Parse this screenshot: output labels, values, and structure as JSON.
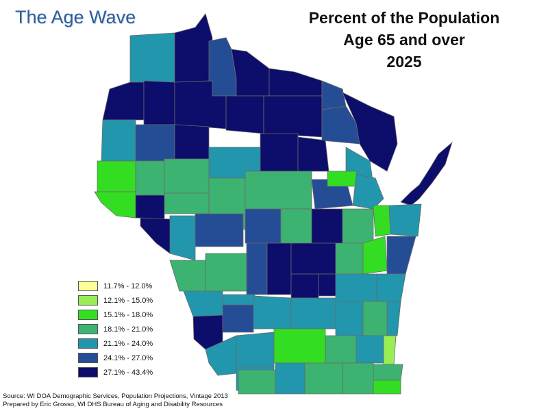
{
  "header": {
    "brand": "The Age Wave",
    "title_lines": [
      "Percent of the Population",
      "Age 65 and over",
      "2025"
    ]
  },
  "legend": {
    "items": [
      {
        "label": "11.7% - 12.0%",
        "color": "#ffff99"
      },
      {
        "label": "12.1% - 15.0%",
        "color": "#99ee55"
      },
      {
        "label": "15.1% - 18.0%",
        "color": "#33dd22"
      },
      {
        "label": "18.1% - 21.0%",
        "color": "#3cb371"
      },
      {
        "label": "21.1% - 24.0%",
        "color": "#2196ad"
      },
      {
        "label": "24.1% - 27.0%",
        "color": "#244d96"
      },
      {
        "label": "27.1% - 43.4%",
        "color": "#0d0d6b"
      }
    ]
  },
  "footer": {
    "source_line": "Source:  WI DOA Demographic Services, Population Projections, Vintage 2013",
    "prepared_line": "Prepared by Eric Grosso, WI DHS Bureau of Aging and Disability Resources"
  }
}
